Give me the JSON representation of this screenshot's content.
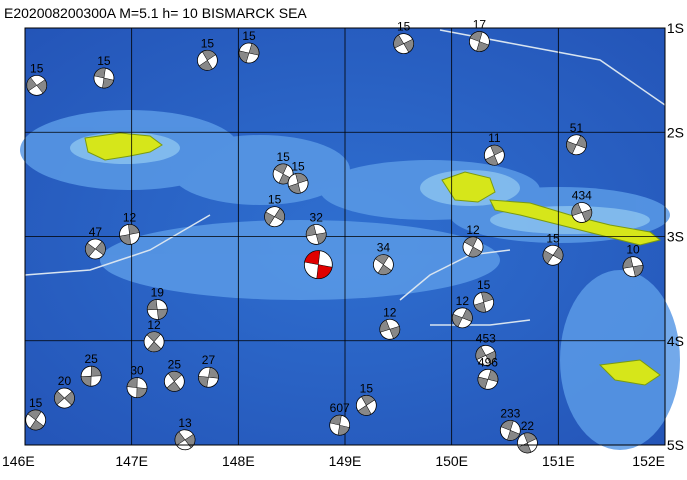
{
  "map": {
    "title": "E202008200300A M=5.1 h= 10 BISMARCK SEA",
    "lonlim": [
      146,
      152
    ],
    "latlim": [
      1,
      5
    ],
    "lonticks": [
      {
        "value": 146,
        "label": "146E"
      },
      {
        "value": 147,
        "label": "147E"
      },
      {
        "value": 148,
        "label": "148E"
      },
      {
        "value": 149,
        "label": "149E"
      },
      {
        "value": 150,
        "label": "150E"
      },
      {
        "value": 151,
        "label": "151E"
      },
      {
        "value": 152,
        "label": "152E"
      }
    ],
    "latticks": [
      {
        "value": 1,
        "label": "1S"
      },
      {
        "value": 2,
        "label": "2S"
      },
      {
        "value": 3,
        "label": "3S"
      },
      {
        "value": 4,
        "label": "4S"
      },
      {
        "value": 5,
        "label": "5S"
      }
    ],
    "ball_color": "#888888",
    "main_color": "#e00000",
    "main_event": {
      "lon": 148.75,
      "lat": 3.27
    },
    "events": [
      {
        "label": "15",
        "lon": 146.11,
        "lat": 1.55
      },
      {
        "label": "15",
        "lon": 146.74,
        "lat": 1.48
      },
      {
        "label": "15",
        "lon": 147.71,
        "lat": 1.31
      },
      {
        "label": "15",
        "lon": 148.1,
        "lat": 1.24
      },
      {
        "label": "15",
        "lon": 149.55,
        "lat": 1.15
      },
      {
        "label": "17",
        "lon": 150.26,
        "lat": 1.13
      },
      {
        "label": "11",
        "lon": 150.4,
        "lat": 2.22
      },
      {
        "label": "51",
        "lon": 151.17,
        "lat": 2.12
      },
      {
        "label": "434",
        "lon": 151.22,
        "lat": 2.77
      },
      {
        "label": "15",
        "lon": 148.42,
        "lat": 2.4
      },
      {
        "label": "15",
        "lon": 148.56,
        "lat": 2.49
      },
      {
        "label": "15",
        "lon": 148.34,
        "lat": 2.81
      },
      {
        "label": "32",
        "lon": 148.73,
        "lat": 2.98
      },
      {
        "label": "34",
        "lon": 149.36,
        "lat": 3.27
      },
      {
        "label": "12",
        "lon": 146.98,
        "lat": 2.98
      },
      {
        "label": "47",
        "lon": 146.66,
        "lat": 3.12
      },
      {
        "label": "19",
        "lon": 147.24,
        "lat": 3.7
      },
      {
        "label": "12",
        "lon": 147.21,
        "lat": 4.01
      },
      {
        "label": "25",
        "lon": 146.62,
        "lat": 4.34
      },
      {
        "label": "20",
        "lon": 146.37,
        "lat": 4.55
      },
      {
        "label": "30",
        "lon": 147.05,
        "lat": 4.45
      },
      {
        "label": "25",
        "lon": 147.4,
        "lat": 4.39
      },
      {
        "label": "27",
        "lon": 147.72,
        "lat": 4.35
      },
      {
        "label": "13",
        "lon": 147.5,
        "lat": 4.95
      },
      {
        "label": "607",
        "lon": 148.95,
        "lat": 4.81
      },
      {
        "label": "15",
        "lon": 149.2,
        "lat": 4.62
      },
      {
        "label": "496",
        "lon": 150.34,
        "lat": 4.37
      },
      {
        "label": "453",
        "lon": 150.32,
        "lat": 4.14
      },
      {
        "label": "233",
        "lon": 150.55,
        "lat": 4.86
      },
      {
        "label": "22",
        "lon": 150.71,
        "lat": 4.98
      },
      {
        "label": "12",
        "lon": 150.1,
        "lat": 3.78
      },
      {
        "label": "12",
        "lon": 149.42,
        "lat": 3.89
      },
      {
        "label": "12",
        "lon": 150.2,
        "lat": 3.1
      },
      {
        "label": "15",
        "lon": 150.3,
        "lat": 3.63
      },
      {
        "label": "15",
        "lon": 150.95,
        "lat": 3.18
      },
      {
        "label": "10",
        "lon": 151.7,
        "lat": 3.29
      },
      {
        "label": "15",
        "lon": 146.1,
        "lat": 4.76
      }
    ]
  }
}
